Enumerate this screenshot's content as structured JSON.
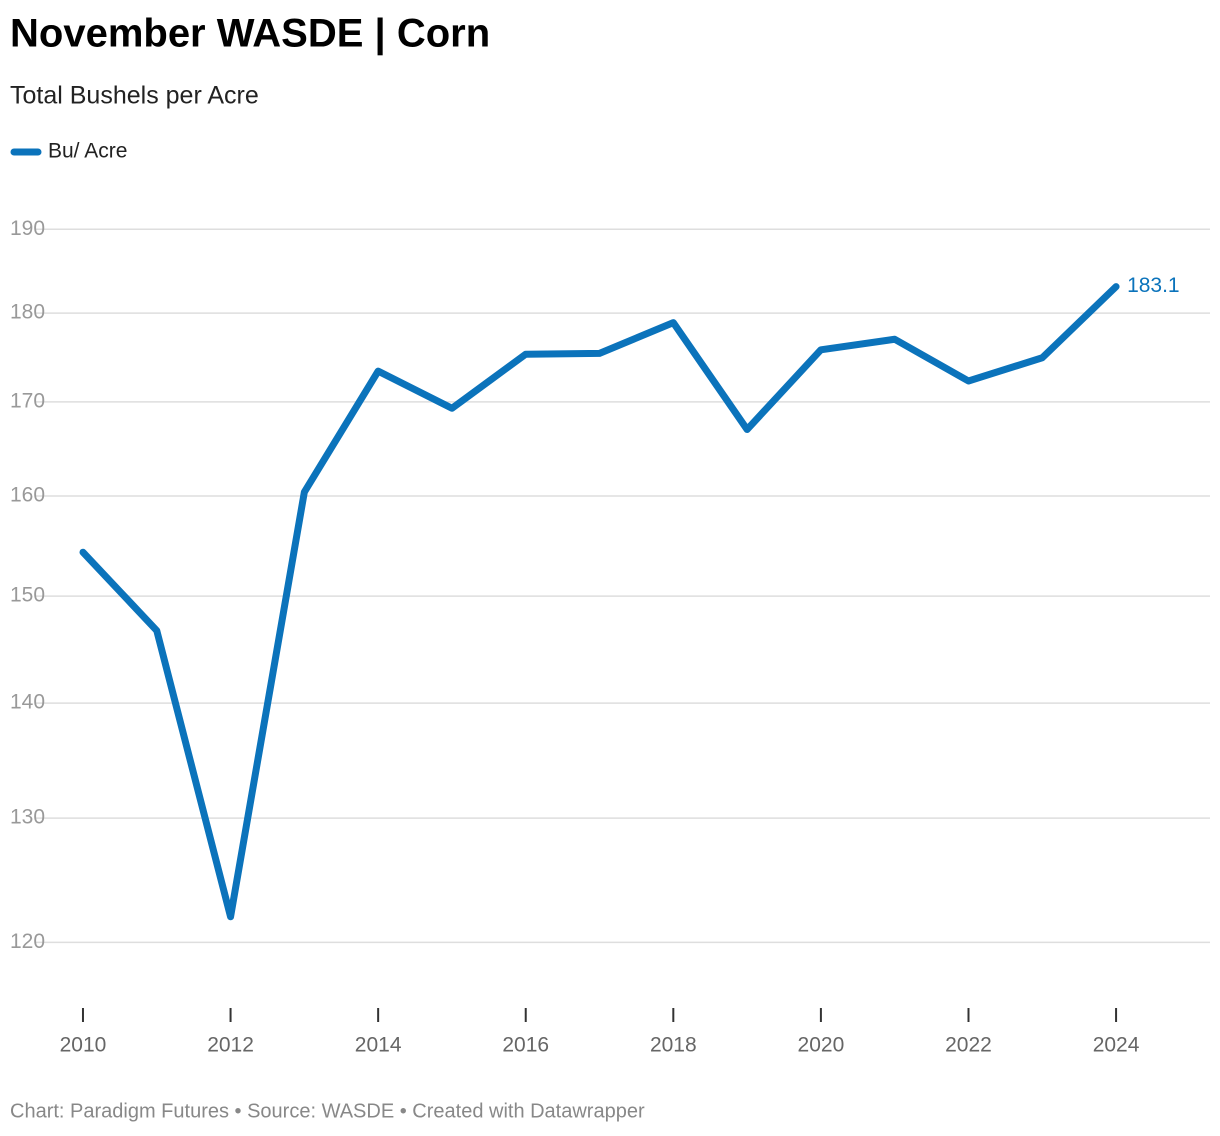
{
  "chart_data": {
    "type": "line",
    "title": "November WASDE | Corn",
    "subtitle": "Total Bushels per Acre",
    "x": [
      2010,
      2011,
      2012,
      2013,
      2014,
      2015,
      2016,
      2017,
      2018,
      2019,
      2020,
      2021,
      2022,
      2023,
      2024
    ],
    "series": [
      {
        "name": "Bu/ Acre",
        "color": "#0b73bb",
        "values": [
          154.3,
          146.7,
          122.0,
          160.4,
          173.4,
          169.3,
          175.3,
          175.4,
          178.9,
          167.0,
          175.8,
          177.0,
          172.3,
          174.9,
          183.1
        ]
      }
    ],
    "log_scale": true,
    "grid": true,
    "ylim": [
      116,
      192
    ],
    "yticks": [
      120,
      130,
      140,
      150,
      160,
      170,
      180,
      190
    ],
    "xlim": [
      2009.4,
      2025.3
    ],
    "xticks": [
      2010,
      2012,
      2014,
      2016,
      2018,
      2020,
      2022,
      2024
    ],
    "label_last": true,
    "footer": "Chart: Paradigm Futures • Source: WASDE • Created with Datawrapper"
  }
}
